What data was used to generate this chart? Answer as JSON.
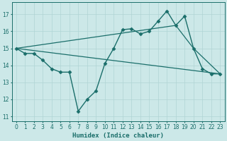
{
  "xlabel": "Humidex (Indice chaleur)",
  "xlim": [
    -0.5,
    23.5
  ],
  "ylim": [
    10.7,
    17.7
  ],
  "yticks": [
    11,
    12,
    13,
    14,
    15,
    16,
    17
  ],
  "xticks": [
    0,
    1,
    2,
    3,
    4,
    5,
    6,
    7,
    8,
    9,
    10,
    11,
    12,
    13,
    14,
    15,
    16,
    17,
    18,
    19,
    20,
    21,
    22,
    23
  ],
  "background_color": "#cce8e8",
  "grid_color": "#b0d4d4",
  "line_color": "#1a6e6a",
  "series": [
    {
      "x": [
        0,
        1,
        2,
        3,
        4,
        5,
        6,
        7,
        8,
        9,
        10,
        11,
        12,
        13,
        14,
        15,
        16,
        17,
        18,
        19,
        20,
        21,
        22,
        23
      ],
      "y": [
        15.0,
        14.7,
        14.7,
        14.3,
        13.8,
        13.6,
        13.6,
        11.3,
        12.0,
        12.5,
        14.1,
        15.0,
        16.1,
        16.15,
        15.85,
        16.0,
        16.6,
        17.2,
        16.35,
        16.9,
        15.0,
        13.8,
        13.5,
        13.5
      ],
      "marker": "D",
      "markersize": 2.5,
      "linewidth": 1.0
    },
    {
      "x": [
        0,
        18,
        20,
        23
      ],
      "y": [
        15.0,
        16.35,
        15.0,
        13.5
      ],
      "marker": null,
      "markersize": 0,
      "linewidth": 0.9
    },
    {
      "x": [
        0,
        23
      ],
      "y": [
        15.0,
        13.5
      ],
      "marker": null,
      "markersize": 0,
      "linewidth": 0.9
    }
  ]
}
